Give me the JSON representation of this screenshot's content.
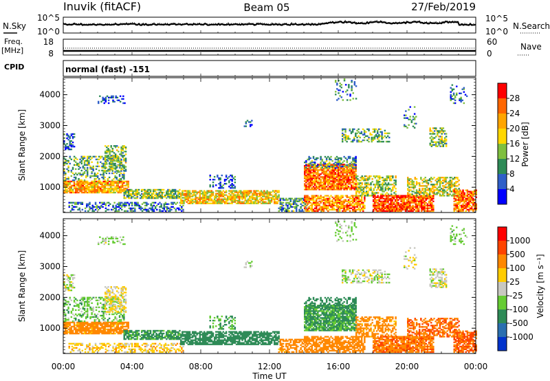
{
  "header": {
    "station": "Inuvik (fitACF)",
    "beam": "Beam 05",
    "date": "27/Feb/2019"
  },
  "panels": {
    "noise": {
      "left_label": "N.Sky",
      "left_ticks": [
        "10^5",
        "10^0"
      ],
      "right_label": "N.Search",
      "right_ticks": [
        "10^5",
        "10^0"
      ]
    },
    "freq": {
      "left_label_1": "Freq.",
      "left_label_2": "[MHz]",
      "left_ticks": [
        "18",
        "8"
      ],
      "right_label": "Nave",
      "right_ticks": [
        "60",
        "0"
      ]
    },
    "cpid": {
      "label": "CPID",
      "value": "normal (fast) -151"
    }
  },
  "chart_data": [
    {
      "type": "heatmap",
      "title": "",
      "quantity": "Power",
      "xlabel": "Time UT",
      "ylabel": "Slant Range [km]",
      "xlim": [
        "00:00",
        "24:00"
      ],
      "xticks": [
        "00:00",
        "04:00",
        "08:00",
        "12:00",
        "16:00",
        "20:00",
        "00:00"
      ],
      "ylim": [
        180,
        4550
      ],
      "yticks": [
        1000,
        2000,
        3000,
        4000
      ],
      "colorbar": {
        "label": "Power [dB]",
        "ticks": [
          "4",
          "8",
          "12",
          "16",
          "20",
          "24",
          "28"
        ],
        "colors": [
          "#0000ff",
          "#2f5fc8",
          "#2e8b57",
          "#7fbf3f",
          "#ffd700",
          "#ffa500",
          "#ff6600",
          "#ff0000"
        ]
      }
    },
    {
      "type": "heatmap",
      "title": "",
      "quantity": "Velocity",
      "xlabel": "Time UT",
      "ylabel": "Slant Range [km]",
      "xlim": [
        "00:00",
        "24:00"
      ],
      "xticks": [
        "00:00",
        "04:00",
        "08:00",
        "12:00",
        "16:00",
        "20:00",
        "00:00"
      ],
      "ylim": [
        180,
        4550
      ],
      "yticks": [
        1000,
        2000,
        3000,
        4000
      ],
      "colorbar": {
        "label": "Velocity [m s⁻¹]",
        "ticks": [
          "1000",
          "500",
          "100",
          "25",
          "-25",
          "-100",
          "-500",
          "-1000"
        ],
        "colors": [
          "#0033cc",
          "#2a6fb0",
          "#2e8b57",
          "#66cc33",
          "#c8c8c0",
          "#ffcc00",
          "#ff8800",
          "#ff4400",
          "#ff0000"
        ]
      }
    }
  ]
}
